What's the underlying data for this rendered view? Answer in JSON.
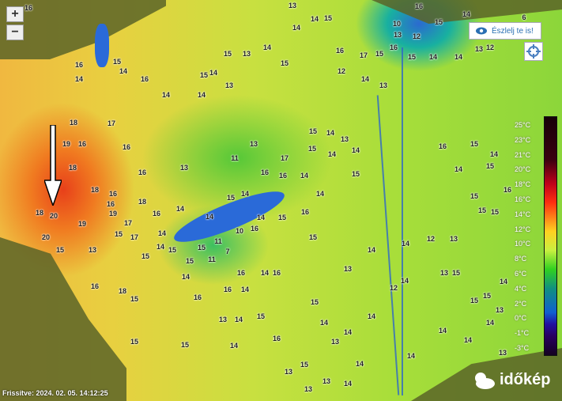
{
  "controls": {
    "zoom_in": "+",
    "zoom_out": "−",
    "eszlelj_label": "Észlelj te is!",
    "eszlelj_icon": "eye-icon",
    "locate_icon": "crosshair-icon"
  },
  "legend": [
    "25°C",
    "23°C",
    "21°C",
    "20°C",
    "18°C",
    "16°C",
    "14°C",
    "12°C",
    "10°C",
    "8°C",
    "6°C",
    "4°C",
    "2°C",
    "0°C",
    "-1°C",
    "-3°C"
  ],
  "stations": [
    "16",
    "13",
    "14",
    "15",
    "14",
    "16",
    "6",
    "10",
    "13",
    "12",
    "15",
    "14",
    "12",
    "16",
    "15",
    "14",
    "15",
    "13",
    "14",
    "15",
    "16",
    "17",
    "15",
    "16",
    "15",
    "14",
    "14",
    "13",
    "14",
    "15",
    "13",
    "12",
    "14",
    "13",
    "18",
    "17",
    "16",
    "14",
    "14",
    "14",
    "19",
    "16",
    "16",
    "13",
    "11",
    "13",
    "16",
    "17",
    "15",
    "14",
    "14",
    "18",
    "16",
    "16",
    "15",
    "14",
    "13",
    "16",
    "14",
    "15",
    "18",
    "16",
    "14",
    "14",
    "15",
    "14",
    "14",
    "18",
    "16",
    "17",
    "15",
    "14",
    "14",
    "15",
    "15",
    "19",
    "18",
    "20",
    "19",
    "17",
    "15",
    "11",
    "7",
    "10",
    "16",
    "14",
    "15",
    "16",
    "15",
    "20",
    "15",
    "13",
    "11",
    "15",
    "14",
    "16",
    "16",
    "14",
    "14",
    "16",
    "16",
    "18",
    "15",
    "16",
    "13",
    "14",
    "15",
    "15",
    "14",
    "14",
    "16",
    "14",
    "13",
    "14",
    "15",
    "13",
    "15",
    "15",
    "14",
    "14",
    "13",
    "13",
    "14",
    "14",
    "14",
    "13",
    "13",
    "14",
    "15",
    "15",
    "14",
    "15",
    "13",
    "14",
    "12",
    "13",
    "14",
    "14",
    "12",
    "13",
    "15",
    "15",
    "15",
    "16",
    "14",
    "15",
    "16",
    "14",
    "15"
  ],
  "footer": {
    "updated": "Frissítve: 2024. 02. 05. 14:12:25",
    "brand": "időkép"
  },
  "annotation": {
    "arrow_icon": "arrow-down-icon",
    "color": "#ffffff"
  }
}
